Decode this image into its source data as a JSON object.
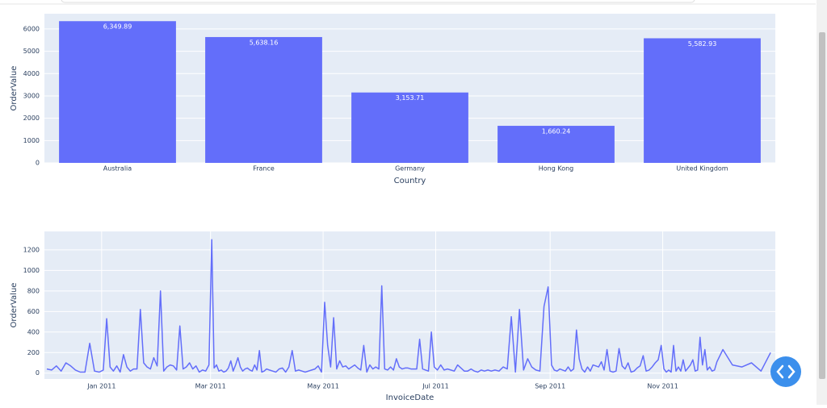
{
  "chart_data": [
    {
      "type": "bar",
      "categories": [
        "Australia",
        "France",
        "Germany",
        "Hong Kong",
        "United Kingdom"
      ],
      "values": [
        6349.89,
        5638.16,
        3153.71,
        1660.24,
        5582.93
      ],
      "value_labels": [
        "6,349.89",
        "5,638.16",
        "3,153.71",
        "1,660.24",
        "5,582.93"
      ],
      "color": "#636efa",
      "ylim": [
        0,
        6684
      ],
      "yticks": [
        0,
        1000,
        2000,
        3000,
        4000,
        5000,
        6000
      ],
      "x_label": "Country",
      "y_label": "OrderValue",
      "grid": true
    },
    {
      "type": "line",
      "color": "#636efa",
      "grid": true,
      "x_label": "InvoiceDate",
      "y_label": "OrderValue",
      "xlim": [
        "2010-12",
        "2011-12"
      ],
      "xticks": [
        {
          "value": "2011-01",
          "label": "Jan 2011"
        },
        {
          "value": "2011-03",
          "label": "Mar 2011"
        },
        {
          "value": "2011-05",
          "label": "May 2011"
        },
        {
          "value": "2011-07",
          "label": "Jul 2011"
        },
        {
          "value": "2011-09",
          "label": "Sep 2011"
        },
        {
          "value": "2011-11",
          "label": "Nov 2011"
        }
      ],
      "ylim": [
        -57,
        1380
      ],
      "yticks": [
        0,
        200,
        400,
        600,
        800,
        1000,
        1200
      ],
      "x": [
        "2010-12",
        "2010-12",
        "2010-12",
        "2010-12",
        "2010-12",
        "2010-12",
        "2010-12",
        "2010-12",
        "2010-12",
        "2010-12",
        "2010-12",
        "2010-12",
        "2011-01",
        "2011-01",
        "2011-01",
        "2011-01",
        "2011-01",
        "2011-01",
        "2011-01",
        "2011-01",
        "2011-01",
        "2011-01",
        "2011-01",
        "2011-01",
        "2011-01",
        "2011-01",
        "2011-01",
        "2011-01",
        "2011-01",
        "2011-02",
        "2011-02",
        "2011-02",
        "2011-02",
        "2011-02",
        "2011-02",
        "2011-02",
        "2011-02",
        "2011-02",
        "2011-02",
        "2011-02",
        "2011-02",
        "2011-02",
        "2011-02",
        "2011-02",
        "2011-02",
        "2011-03",
        "2011-03",
        "2011-03",
        "2011-03",
        "2011-03",
        "2011-03",
        "2011-03",
        "2011-03",
        "2011-03",
        "2011-03",
        "2011-03",
        "2011-03",
        "2011-03",
        "2011-03",
        "2011-03",
        "2011-03",
        "2011-03",
        "2011-03",
        "2011-03",
        "2011-03",
        "2011-03",
        "2011-03",
        "2011-03",
        "2011-03",
        "2011-04",
        "2011-04",
        "2011-04",
        "2011-04",
        "2011-04",
        "2011-04",
        "2011-04",
        "2011-04",
        "2011-04",
        "2011-04",
        "2011-04",
        "2011-04",
        "2011-04",
        "2011-04",
        "2011-04",
        "2011-04",
        "2011-04",
        "2011-05",
        "2011-05",
        "2011-05",
        "2011-05",
        "2011-05",
        "2011-05",
        "2011-05",
        "2011-05",
        "2011-05",
        "2011-05",
        "2011-05",
        "2011-05",
        "2011-05",
        "2011-05",
        "2011-05",
        "2011-05",
        "2011-05",
        "2011-05",
        "2011-05",
        "2011-06",
        "2011-06",
        "2011-06",
        "2011-06",
        "2011-06",
        "2011-06",
        "2011-06",
        "2011-06",
        "2011-06",
        "2011-06",
        "2011-06",
        "2011-06",
        "2011-06",
        "2011-06",
        "2011-06",
        "2011-06",
        "2011-06",
        "2011-06",
        "2011-06",
        "2011-07",
        "2011-07",
        "2011-07",
        "2011-07",
        "2011-07",
        "2011-07",
        "2011-07",
        "2011-07",
        "2011-07",
        "2011-07",
        "2011-07",
        "2011-07",
        "2011-07",
        "2011-07",
        "2011-07",
        "2011-07",
        "2011-07",
        "2011-08",
        "2011-08",
        "2011-08",
        "2011-08",
        "2011-08",
        "2011-08",
        "2011-08",
        "2011-08",
        "2011-08",
        "2011-08",
        "2011-08",
        "2011-08",
        "2011-08",
        "2011-08",
        "2011-09",
        "2011-09",
        "2011-09",
        "2011-09",
        "2011-09",
        "2011-09",
        "2011-09",
        "2011-09",
        "2011-09",
        "2011-09",
        "2011-09",
        "2011-09",
        "2011-09",
        "2011-09",
        "2011-09",
        "2011-09",
        "2011-09",
        "2011-09",
        "2011-09",
        "2011-09",
        "2011-10",
        "2011-10",
        "2011-10",
        "2011-10",
        "2011-10",
        "2011-10",
        "2011-10",
        "2011-10",
        "2011-10",
        "2011-10",
        "2011-10",
        "2011-10",
        "2011-10",
        "2011-10",
        "2011-10",
        "2011-10",
        "2011-10",
        "2011-10",
        "2011-10",
        "2011-11",
        "2011-11",
        "2011-11",
        "2011-11",
        "2011-11",
        "2011-11",
        "2011-11",
        "2011-11",
        "2011-11",
        "2011-11",
        "2011-11",
        "2011-11",
        "2011-11",
        "2011-11",
        "2011-11",
        "2011-11",
        "2011-11",
        "2011-11",
        "2011-11",
        "2011-11",
        "2011-11",
        "2011-11",
        "2011-11",
        "2011-12",
        "2011-12",
        "2011-12",
        "2011-12",
        "2011-12",
        "2011-12"
      ],
      "values": [
        40,
        30,
        70,
        20,
        100,
        70,
        30,
        10,
        10,
        290,
        20,
        10,
        30,
        530,
        60,
        20,
        70,
        10,
        180,
        60,
        20,
        40,
        40,
        620,
        100,
        60,
        40,
        150,
        70,
        800,
        20,
        60,
        80,
        70,
        30,
        460,
        40,
        60,
        100,
        40,
        70,
        10,
        30,
        20,
        80,
        1300,
        50,
        80,
        20,
        30,
        10,
        20,
        50,
        120,
        20,
        80,
        150,
        60,
        20,
        40,
        50,
        30,
        20,
        80,
        30,
        220,
        10,
        20,
        40,
        30,
        20,
        10,
        40,
        50,
        10,
        60,
        220,
        20,
        30,
        20,
        10,
        20,
        30,
        40,
        70,
        10,
        690,
        270,
        60,
        540,
        40,
        120,
        60,
        70,
        40,
        60,
        80,
        50,
        30,
        270,
        10,
        80,
        40,
        60,
        40,
        850,
        40,
        30,
        60,
        30,
        140,
        60,
        40,
        50,
        50,
        40,
        40,
        40,
        330,
        40,
        30,
        20,
        400,
        60,
        30,
        80,
        30,
        40,
        30,
        20,
        80,
        50,
        20,
        20,
        40,
        20,
        10,
        30,
        20,
        30,
        20,
        30,
        20,
        60,
        40,
        550,
        10,
        620,
        30,
        140,
        60,
        30,
        20,
        650,
        840,
        80,
        30,
        20,
        40,
        30,
        20,
        60,
        20,
        40,
        420,
        140,
        40,
        10,
        60,
        20,
        80,
        70,
        60,
        110,
        30,
        230,
        20,
        10,
        20,
        240,
        70,
        40,
        100,
        10,
        20,
        50,
        70,
        170,
        20,
        30,
        60,
        100,
        130,
        270,
        40,
        10,
        30,
        10,
        270,
        20,
        60,
        20,
        130,
        20,
        50,
        80,
        130,
        20,
        30,
        350,
        80,
        230,
        30,
        60,
        20,
        30,
        110,
        230,
        80,
        60,
        100,
        20,
        200
      ]
    }
  ]
}
